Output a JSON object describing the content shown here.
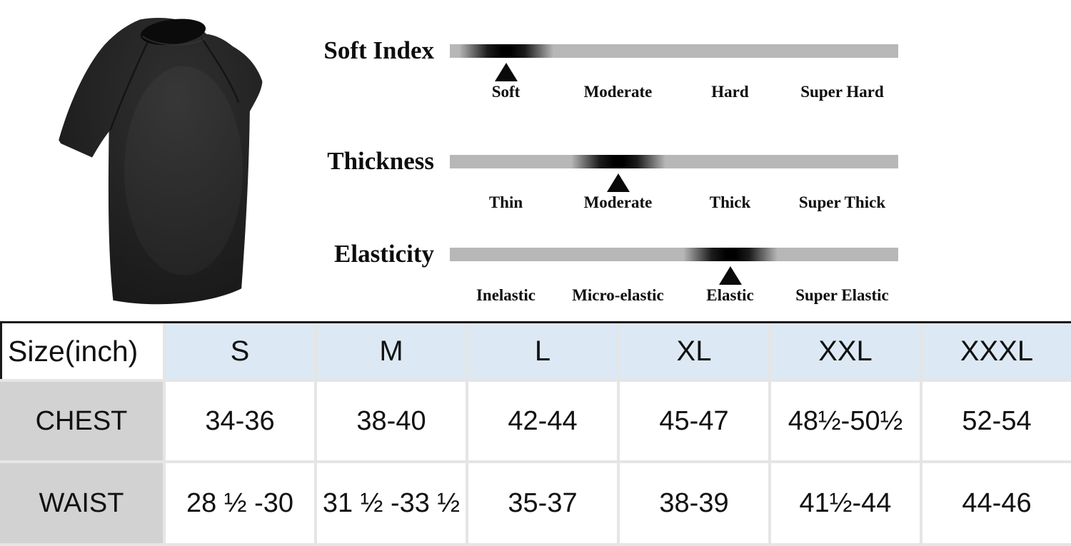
{
  "product": {
    "description": "black short-sleeve t-shirt",
    "shirt_color": "#1f1f1f"
  },
  "attributes": {
    "scales": [
      {
        "title": "Soft Index",
        "labels": [
          "Soft",
          "Moderate",
          "Hard",
          "Super Hard"
        ],
        "selected": "Soft",
        "position_pct": 12.5
      },
      {
        "title": "Thickness",
        "labels": [
          "Thin",
          "Moderate",
          "Thick",
          "Super Thick"
        ],
        "selected": "Moderate",
        "position_pct": 37.5
      },
      {
        "title": "Elasticity",
        "labels": [
          "Inelastic",
          "Micro-elastic",
          "Elastic",
          "Super Elastic"
        ],
        "selected": "Elastic",
        "position_pct": 62.5
      }
    ]
  },
  "size_chart": {
    "corner_label": "Size(inch)",
    "columns": [
      "S",
      "M",
      "L",
      "XL",
      "XXL",
      "XXXL"
    ],
    "rows": [
      {
        "label": "CHEST",
        "values": [
          "34-36",
          "38-40",
          "42-44",
          "45-47",
          "48½-50½",
          "52-54"
        ]
      },
      {
        "label": "WAIST",
        "values": [
          "28 ½ -30",
          "31 ½ -33 ½",
          "35-37",
          "38-39",
          "41½-44",
          "44-46"
        ]
      }
    ]
  },
  "colors": {
    "header_blue": "#dce9f4",
    "row_label_gray": "#d2d2d2",
    "bar_gray": "#b7b7b7",
    "marker_black": "#0a0a0a",
    "table_top_border": "#191919",
    "grid_gap_gray": "#e5e5e5"
  }
}
